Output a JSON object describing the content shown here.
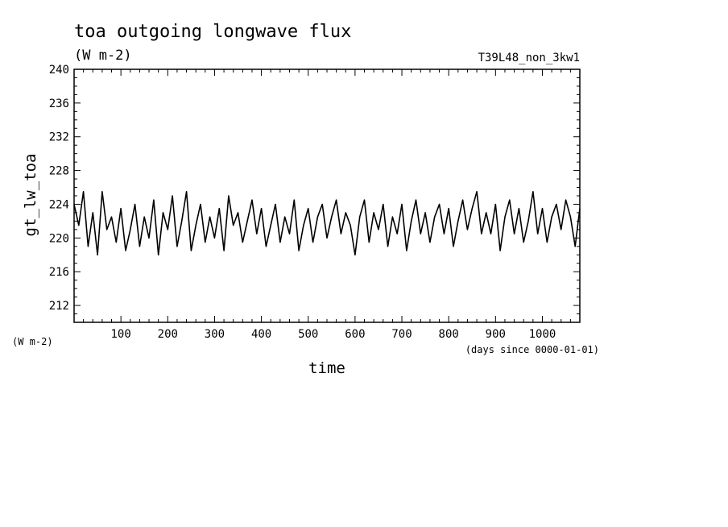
{
  "chart_data": {
    "type": "line",
    "title": "toa outgoing longwave flux",
    "subtitle": "(W m-2)",
    "dataset": "T39L48_non_3kw1",
    "xlabel": "time",
    "xunits": "(days since 0000-01-01)",
    "ylabel": "gt_lw_toa",
    "yunits": "(W m-2)",
    "xlim": [
      0,
      1080
    ],
    "ylim": [
      210,
      240
    ],
    "xticks": [
      100,
      200,
      300,
      400,
      500,
      600,
      700,
      800,
      900,
      1000
    ],
    "yticks": [
      212,
      216,
      220,
      224,
      228,
      232,
      236,
      240
    ],
    "grid": false,
    "series": [
      {
        "color": "#000000",
        "x": [
          0,
          10,
          20,
          30,
          40,
          50,
          60,
          70,
          80,
          90,
          100,
          110,
          120,
          130,
          140,
          150,
          160,
          170,
          180,
          190,
          200,
          210,
          220,
          230,
          240,
          250,
          260,
          270,
          280,
          290,
          300,
          310,
          320,
          330,
          340,
          350,
          360,
          370,
          380,
          390,
          400,
          410,
          420,
          430,
          440,
          450,
          460,
          470,
          480,
          490,
          500,
          510,
          520,
          530,
          540,
          550,
          560,
          570,
          580,
          590,
          600,
          610,
          620,
          630,
          640,
          650,
          660,
          670,
          680,
          690,
          700,
          710,
          720,
          730,
          740,
          750,
          760,
          770,
          780,
          790,
          800,
          810,
          820,
          830,
          840,
          850,
          860,
          870,
          880,
          890,
          900,
          910,
          920,
          930,
          940,
          950,
          960,
          970,
          980,
          990,
          1000,
          1010,
          1020,
          1030,
          1040,
          1050,
          1060,
          1070,
          1080
        ],
        "y": [
          224.0,
          221.5,
          225.5,
          219.0,
          223.0,
          218.0,
          225.5,
          221.0,
          222.5,
          219.5,
          223.5,
          218.5,
          221.0,
          224.0,
          219.0,
          222.5,
          220.0,
          224.5,
          218.0,
          223.0,
          221.0,
          225.0,
          219.0,
          222.0,
          225.5,
          218.5,
          221.5,
          224.0,
          219.5,
          222.5,
          220.0,
          223.5,
          218.5,
          225.0,
          221.5,
          223.0,
          219.5,
          222.0,
          224.5,
          220.5,
          223.5,
          219.0,
          221.5,
          224.0,
          219.5,
          222.5,
          220.5,
          224.5,
          218.5,
          221.5,
          223.5,
          219.5,
          222.5,
          224.0,
          220.0,
          222.5,
          224.5,
          220.5,
          223.0,
          221.5,
          218.0,
          222.5,
          224.5,
          219.5,
          223.0,
          221.0,
          224.0,
          219.0,
          222.5,
          220.5,
          224.0,
          218.5,
          222.0,
          224.5,
          220.5,
          223.0,
          219.5,
          222.5,
          224.0,
          220.5,
          223.5,
          219.0,
          222.0,
          224.5,
          221.0,
          223.5,
          225.5,
          220.5,
          223.0,
          220.5,
          224.0,
          218.5,
          222.5,
          224.5,
          220.5,
          223.5,
          219.5,
          222.0,
          225.5,
          220.5,
          223.5,
          219.5,
          222.5,
          224.0,
          221.0,
          224.5,
          222.5,
          219.0,
          223.5
        ]
      }
    ]
  }
}
